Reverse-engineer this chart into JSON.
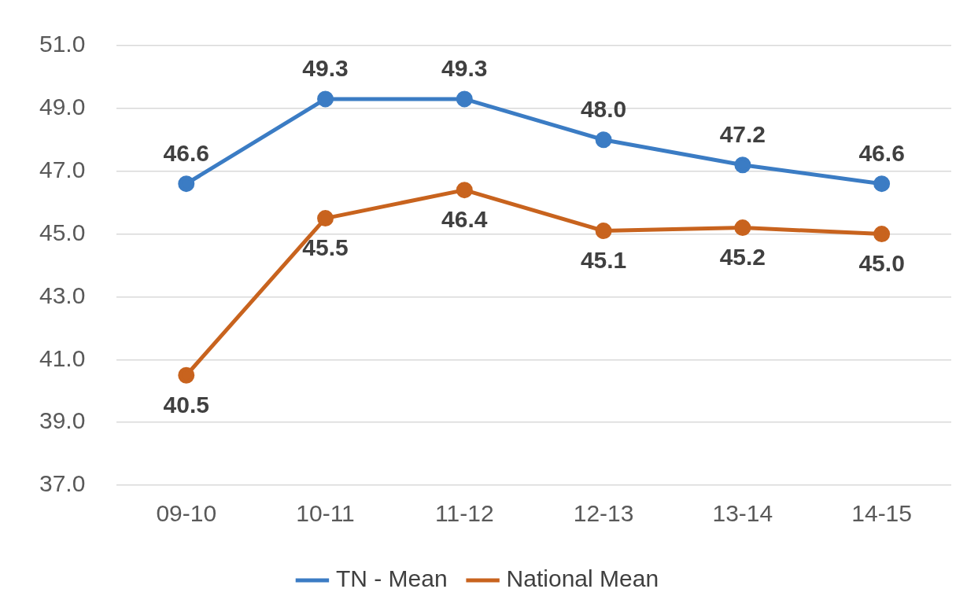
{
  "chart_data": {
    "type": "line",
    "categories": [
      "09-10",
      "10-11",
      "11-12",
      "12-13",
      "13-14",
      "14-15"
    ],
    "series": [
      {
        "name": "TN - Mean",
        "color": "#3b7cc4",
        "values": [
          46.6,
          49.3,
          49.3,
          48.0,
          47.2,
          46.6
        ],
        "value_labels": [
          "46.6",
          "49.3",
          "49.3",
          "48.0",
          "47.2",
          "46.6"
        ]
      },
      {
        "name": "National Mean",
        "color": "#c8631e",
        "values": [
          40.5,
          45.5,
          46.4,
          45.1,
          45.2,
          45.0
        ],
        "value_labels": [
          "40.5",
          "45.5",
          "46.4",
          "45.1",
          "45.2",
          "45.0"
        ]
      }
    ],
    "ylim": [
      37,
      51
    ],
    "yticks": [
      {
        "value": 37,
        "label": "37.0"
      },
      {
        "value": 39,
        "label": "39.0"
      },
      {
        "value": 41,
        "label": "41.0"
      },
      {
        "value": 43,
        "label": "43.0"
      },
      {
        "value": 45,
        "label": "45.0"
      },
      {
        "value": 47,
        "label": "47.0"
      },
      {
        "value": 49,
        "label": "49.0"
      },
      {
        "value": 51,
        "label": "51.0"
      }
    ],
    "grid": "y",
    "legend": "bottom",
    "marker": "circle",
    "line_style": "solid"
  }
}
